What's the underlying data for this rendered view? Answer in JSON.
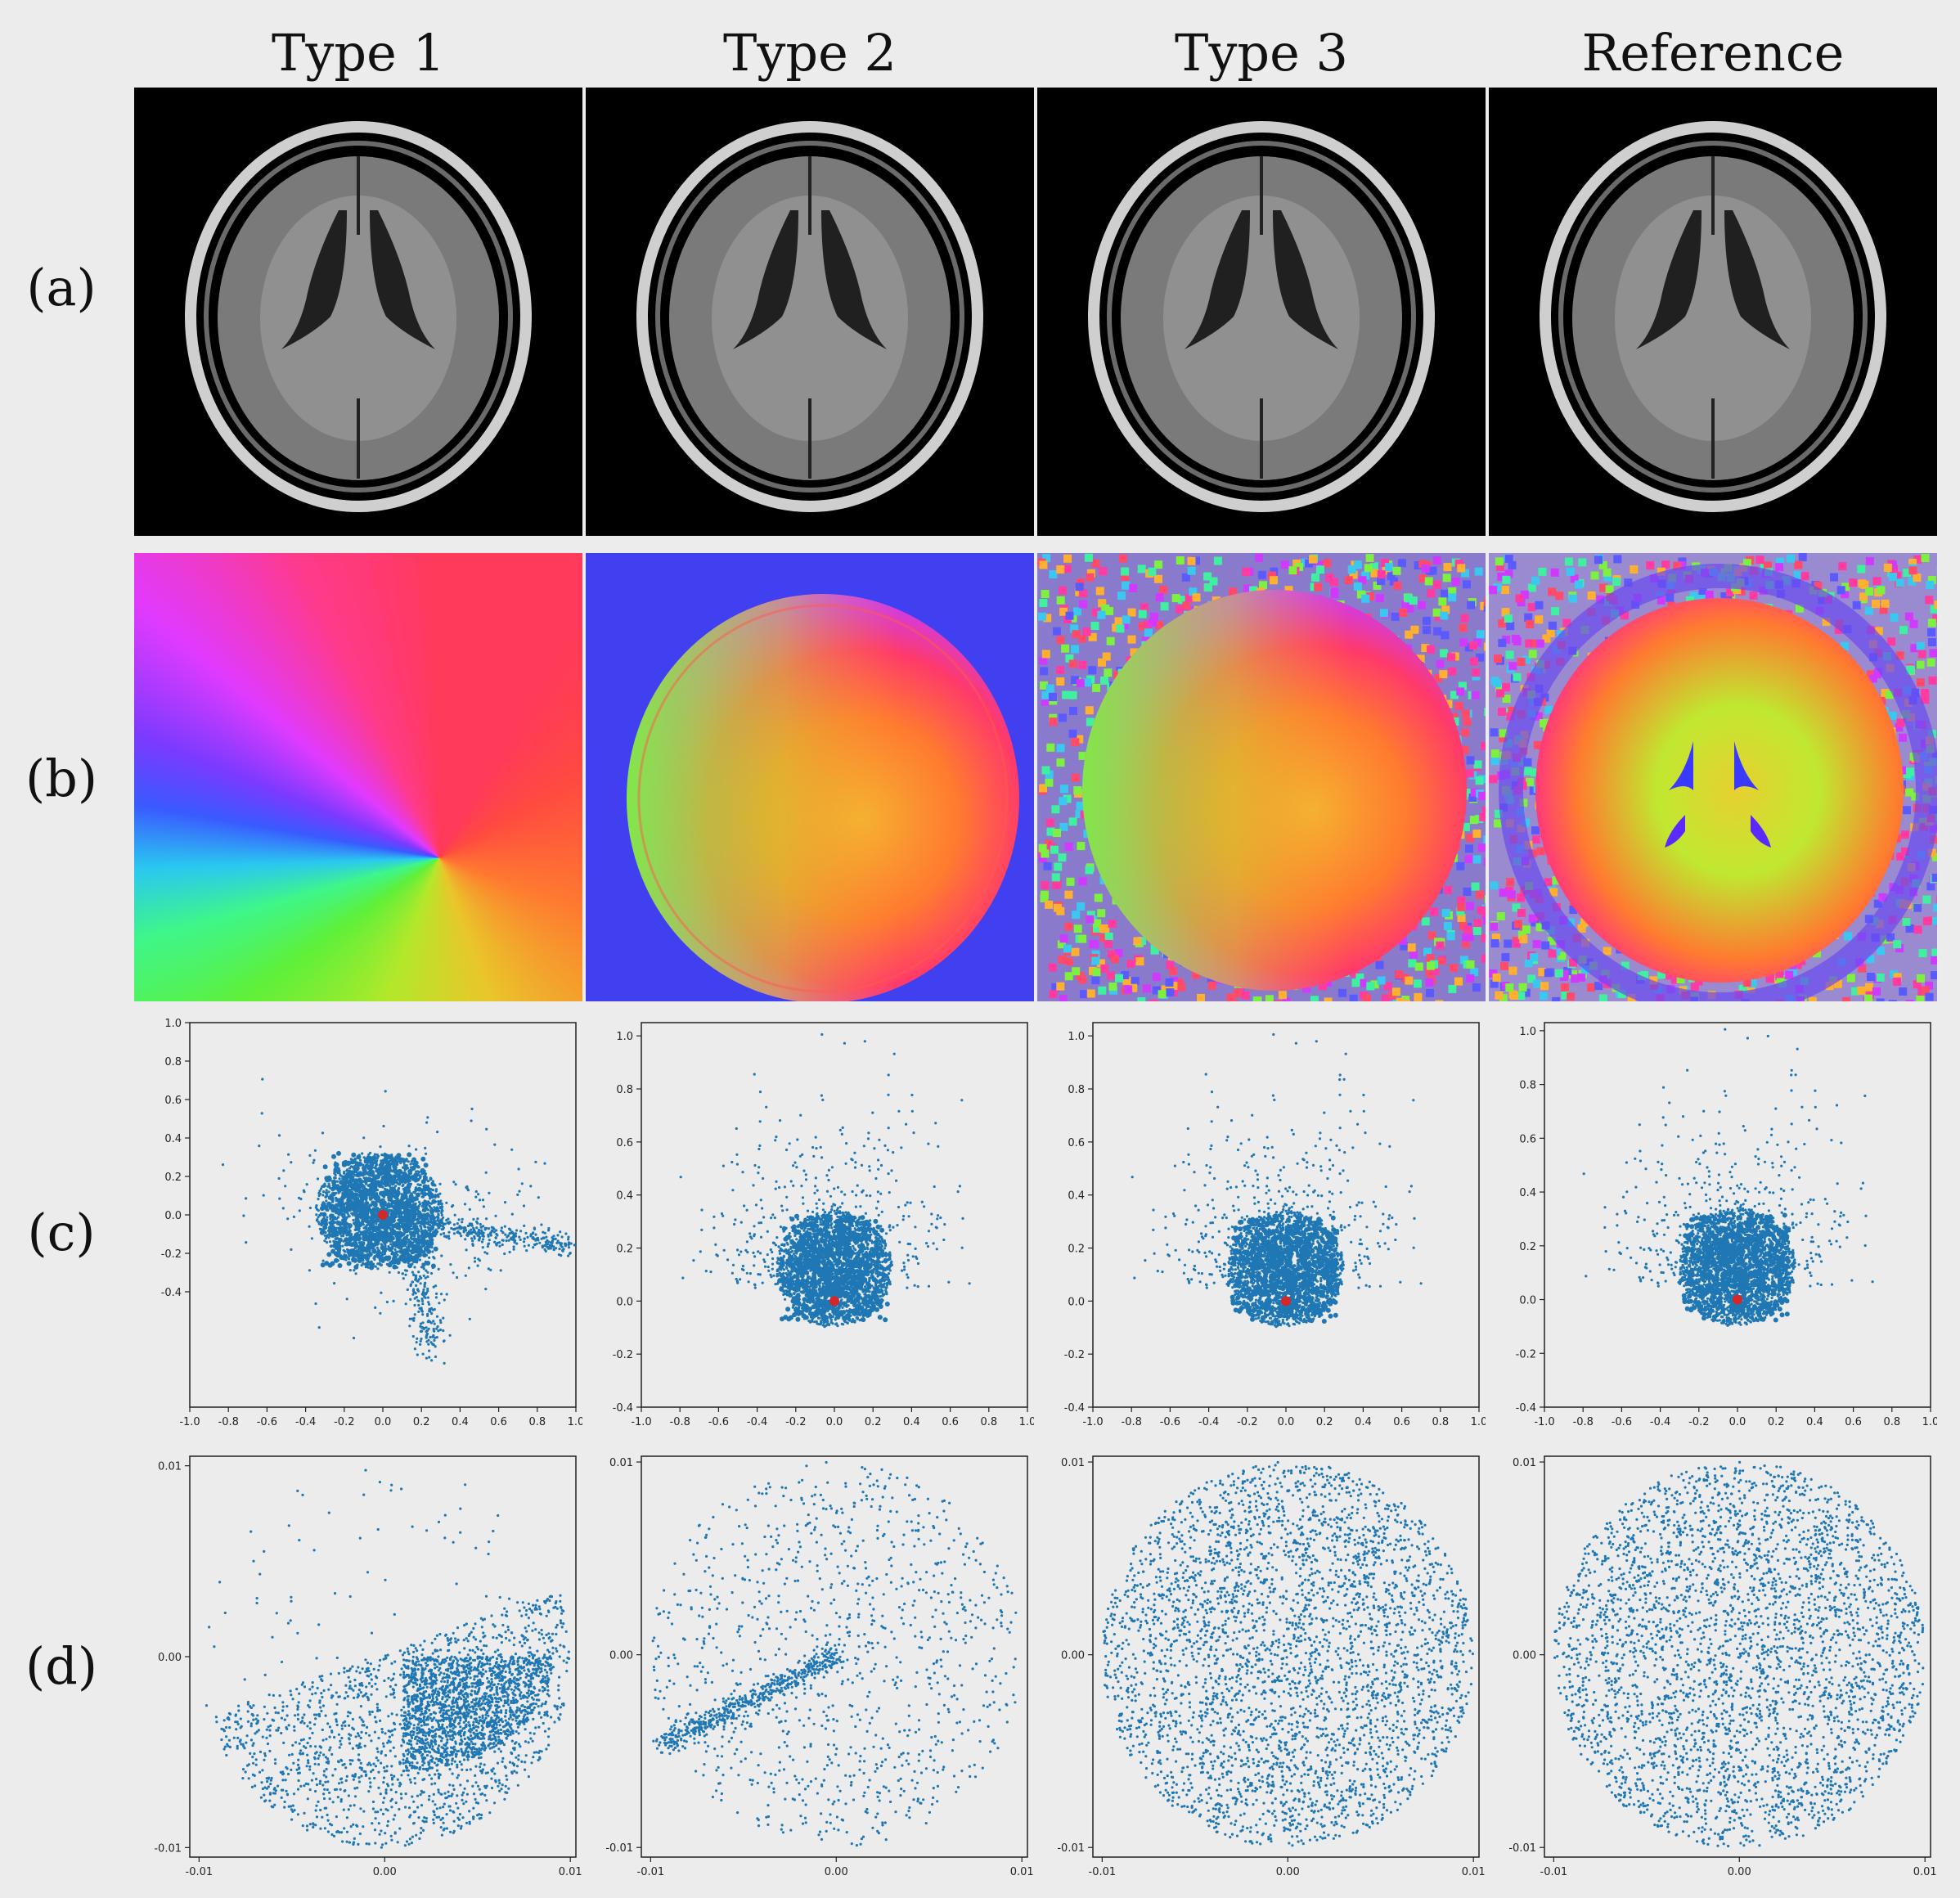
{
  "columns": [
    "Type 1",
    "Type 2",
    "Type 3",
    "Reference"
  ],
  "rows": [
    "(a)",
    "(b)",
    "(c)",
    "(d)"
  ],
  "colors": {
    "scatter": "#1f77b4",
    "center_point": "#d62728"
  },
  "chart_data": [
    {
      "type": "scatter",
      "panel": "c-type1",
      "xlim": [
        -1.0,
        1.0
      ],
      "ylim": [
        -1.0,
        1.0
      ],
      "xticks": [
        "-1.0",
        "-0.8",
        "-0.6",
        "-0.4",
        "-0.2",
        "0.0",
        "0.2",
        "0.4",
        "0.6",
        "0.8",
        "1.0"
      ],
      "xtick_values": [
        -1.0,
        -0.8,
        -0.6,
        -0.4,
        -0.2,
        0.0,
        0.2,
        0.4,
        0.6,
        0.8,
        1.0
      ],
      "yticks": [
        "-0.4",
        "-0.2",
        "0.0",
        "0.2",
        "0.4",
        "0.6",
        "0.8",
        "1.0"
      ],
      "ytick_values": [
        -0.4,
        -0.2,
        0.0,
        0.2,
        0.4,
        0.6,
        0.8,
        1.0
      ],
      "center": [
        0.0,
        0.0
      ]
    },
    {
      "type": "scatter",
      "panel": "c-type2",
      "xlim": [
        -1.0,
        1.0
      ],
      "ylim": [
        -0.4,
        1.05
      ],
      "xticks": [
        "-1.0",
        "-0.8",
        "-0.6",
        "-0.4",
        "-0.2",
        "0.0",
        "0.2",
        "0.4",
        "0.6",
        "0.8",
        "1.0"
      ],
      "xtick_values": [
        -1.0,
        -0.8,
        -0.6,
        -0.4,
        -0.2,
        0.0,
        0.2,
        0.4,
        0.6,
        0.8,
        1.0
      ],
      "yticks": [
        "-0.4",
        "-0.2",
        "0.0",
        "0.2",
        "0.4",
        "0.6",
        "0.8",
        "1.0"
      ],
      "ytick_values": [
        -0.4,
        -0.2,
        0.0,
        0.2,
        0.4,
        0.6,
        0.8,
        1.0
      ],
      "center": [
        0.0,
        0.0
      ]
    },
    {
      "type": "scatter",
      "panel": "c-type3",
      "xlim": [
        -1.0,
        1.0
      ],
      "ylim": [
        -0.4,
        1.05
      ],
      "xticks": [
        "-1.0",
        "-0.8",
        "-0.6",
        "-0.4",
        "-0.2",
        "0.0",
        "0.2",
        "0.4",
        "0.6",
        "0.8",
        "1.0"
      ],
      "xtick_values": [
        -1.0,
        -0.8,
        -0.6,
        -0.4,
        -0.2,
        0.0,
        0.2,
        0.4,
        0.6,
        0.8,
        1.0
      ],
      "yticks": [
        "-0.4",
        "-0.2",
        "0.0",
        "0.2",
        "0.4",
        "0.6",
        "0.8",
        "1.0"
      ],
      "ytick_values": [
        -0.4,
        -0.2,
        0.0,
        0.2,
        0.4,
        0.6,
        0.8,
        1.0
      ],
      "center": [
        0.0,
        0.0
      ]
    },
    {
      "type": "scatter",
      "panel": "c-reference",
      "xlim": [
        -1.0,
        1.0
      ],
      "ylim": [
        -0.4,
        1.03
      ],
      "xticks": [
        "-1.0",
        "-0.8",
        "-0.6",
        "-0.4",
        "-0.2",
        "0.0",
        "0.2",
        "0.4",
        "0.6",
        "0.8",
        "1.0"
      ],
      "xtick_values": [
        -1.0,
        -0.8,
        -0.6,
        -0.4,
        -0.2,
        0.0,
        0.2,
        0.4,
        0.6,
        0.8,
        1.0
      ],
      "yticks": [
        "-0.4",
        "-0.2",
        "0.0",
        "0.2",
        "0.4",
        "0.6",
        "0.8",
        "1.0"
      ],
      "ytick_values": [
        -0.4,
        -0.2,
        0.0,
        0.2,
        0.4,
        0.6,
        0.8,
        1.0
      ],
      "center": [
        0.0,
        0.0
      ]
    },
    {
      "type": "scatter",
      "panel": "d-type1",
      "xlim": [
        -0.0105,
        0.0103
      ],
      "ylim": [
        -0.0105,
        0.0105
      ],
      "xticks": [
        "-0.01",
        "0.00",
        "0.01"
      ],
      "xtick_values": [
        -0.01,
        0.0,
        0.01
      ],
      "yticks": [
        "-0.01",
        "0.00",
        "0.01"
      ],
      "ytick_values": [
        -0.01,
        0.0,
        0.01
      ]
    },
    {
      "type": "scatter",
      "panel": "d-type2",
      "xlim": [
        -0.0105,
        0.0103
      ],
      "ylim": [
        -0.0105,
        0.0103
      ],
      "xticks": [
        "-0.01",
        "0.00",
        "0.01"
      ],
      "xtick_values": [
        -0.01,
        0.0,
        0.01
      ],
      "yticks": [
        "-0.01",
        "0.00",
        "0.01"
      ],
      "ytick_values": [
        -0.01,
        0.0,
        0.01
      ]
    },
    {
      "type": "scatter",
      "panel": "d-type3",
      "xlim": [
        -0.0105,
        0.0103
      ],
      "ylim": [
        -0.0105,
        0.0103
      ],
      "xticks": [
        "-0.01",
        "0.00",
        "0.01"
      ],
      "xtick_values": [
        -0.01,
        0.0,
        0.01
      ],
      "yticks": [
        "-0.01",
        "0.00",
        "0.01"
      ],
      "ytick_values": [
        -0.01,
        0.0,
        0.01
      ]
    },
    {
      "type": "scatter",
      "panel": "d-reference",
      "xlim": [
        -0.0105,
        0.0103
      ],
      "ylim": [
        -0.0105,
        0.0103
      ],
      "xticks": [
        "-0.01",
        "0.00",
        "0.01"
      ],
      "xtick_values": [
        -0.01,
        0.0,
        0.01
      ],
      "yticks": [
        "-0.01",
        "0.00",
        "0.01"
      ],
      "ytick_values": [
        -0.01,
        0.0,
        0.01
      ]
    }
  ]
}
